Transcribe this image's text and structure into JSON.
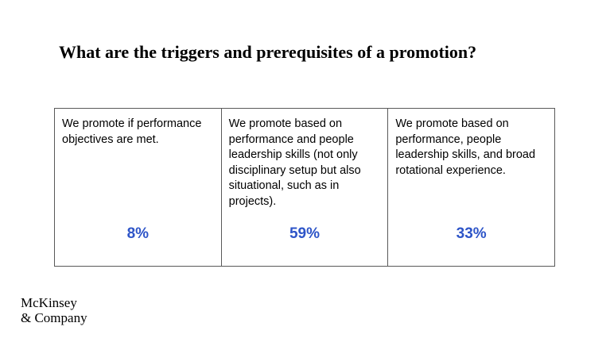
{
  "title": "What are the triggers and prerequisites of a promotion?",
  "accent_color": "#2E55C8",
  "options": [
    {
      "text": "We promote if performance objectives are met.",
      "percent": "8%"
    },
    {
      "text": "We promote based on performance and people leadership skills (not only disciplinary setup but also situational, such as in projects).",
      "percent": "59%"
    },
    {
      "text": "We promote based on performance, people leadership skills, and broad rotational experience.",
      "percent": "33%"
    }
  ],
  "logo": {
    "line1": "McKinsey",
    "line2": "& Company"
  }
}
